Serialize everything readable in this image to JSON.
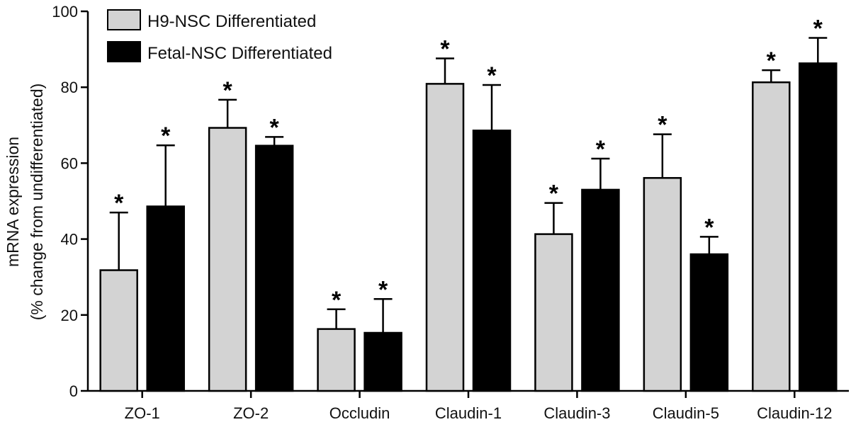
{
  "chart_data": {
    "type": "bar",
    "title": "",
    "ylabel_line1": "mRNA expression",
    "ylabel_line2": "(% change from undifferentiated)",
    "xlabel": "",
    "ylim": [
      0,
      100
    ],
    "yticks": [
      0,
      20,
      40,
      60,
      80,
      100
    ],
    "categories": [
      "ZO-1",
      "ZO-2",
      "Occludin",
      "Claudin-1",
      "Claudin-3",
      "Claudin-5",
      "Claudin-12"
    ],
    "series": [
      {
        "name": "H9-NSC Differentiated",
        "color": "#d3d3d3",
        "values": [
          31.8,
          69.3,
          16.3,
          80.9,
          41.3,
          56.1,
          81.3
        ],
        "errors": [
          15.2,
          7.4,
          5.2,
          6.7,
          8.2,
          11.5,
          3.2
        ],
        "significant": [
          true,
          true,
          true,
          true,
          true,
          true,
          true
        ]
      },
      {
        "name": "Fetal-NSC Differentiated",
        "color": "#000000",
        "values": [
          48.6,
          64.6,
          15.3,
          68.6,
          53.0,
          36.0,
          86.3
        ],
        "errors": [
          16.1,
          2.3,
          8.9,
          12.0,
          8.2,
          4.6,
          6.7
        ],
        "significant": [
          true,
          true,
          true,
          true,
          true,
          true,
          true
        ]
      }
    ],
    "significance_marker": "*",
    "legend_position": "top-left",
    "grid": false
  }
}
